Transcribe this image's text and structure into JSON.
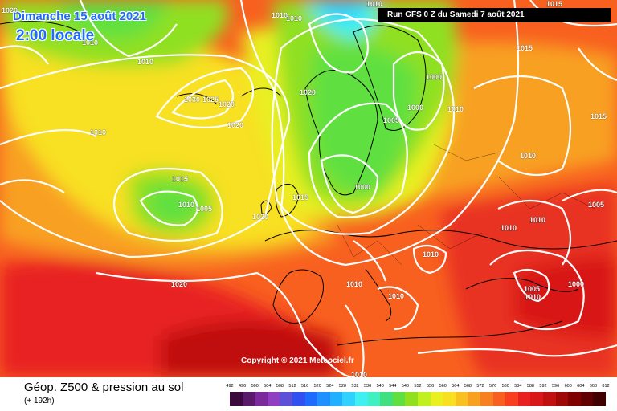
{
  "title": {
    "date": "Dimanche 15 août 2021",
    "time": "2:00 locale"
  },
  "run_info": "Run GFS 0 Z du Samedi 7 août 2021",
  "copyright": "Copyright © 2021 Meteociel.fr",
  "legend": {
    "title": "Géop. Z500 & pression au sol",
    "subtitle": "(+ 192h)",
    "ticks": [
      "492",
      "496",
      "500",
      "504",
      "508",
      "512",
      "516",
      "520",
      "524",
      "528",
      "532",
      "536",
      "540",
      "544",
      "548",
      "552",
      "556",
      "560",
      "564",
      "568",
      "572",
      "576",
      "580",
      "584",
      "588",
      "592",
      "596",
      "600",
      "604",
      "608",
      "612"
    ],
    "colors": [
      "#3a0a3a",
      "#5a1a6a",
      "#7a2a9a",
      "#8f3fc0",
      "#5e4fd8",
      "#3050f0",
      "#1e6bff",
      "#1e90ff",
      "#20b0ff",
      "#30d0ff",
      "#40f0f0",
      "#40f0c0",
      "#40e080",
      "#60e040",
      "#90e020",
      "#c0f020",
      "#e8f020",
      "#f8e020",
      "#f8c020",
      "#f8a020",
      "#f88020",
      "#f86020",
      "#f84020",
      "#e82020",
      "#d81818",
      "#c01010",
      "#a00808",
      "#800000",
      "#600000",
      "#400000"
    ]
  },
  "isobars": [
    {
      "label": "1020",
      "key": "i1"
    },
    {
      "label": "1010",
      "key": "i2"
    },
    {
      "label": "1010",
      "key": "i3"
    },
    {
      "label": "1010",
      "key": "i4"
    },
    {
      "label": "1015",
      "key": "i5"
    },
    {
      "label": "1010",
      "key": "i6"
    },
    {
      "label": "1030",
      "key": "i7"
    },
    {
      "label": "1025",
      "key": "i8"
    },
    {
      "label": "1020",
      "key": "i9"
    },
    {
      "label": "1020",
      "key": "i10"
    },
    {
      "label": "1020",
      "key": "i11"
    },
    {
      "label": "1000",
      "key": "i12"
    },
    {
      "label": "1000",
      "key": "i13"
    },
    {
      "label": "1005",
      "key": "i14"
    },
    {
      "label": "1010",
      "key": "i15"
    },
    {
      "label": "1015",
      "key": "i16"
    },
    {
      "label": "1010",
      "key": "i17"
    },
    {
      "label": "1015",
      "key": "i18"
    },
    {
      "label": "1010",
      "key": "i19"
    },
    {
      "label": "1005",
      "key": "i20"
    },
    {
      "label": "1000",
      "key": "i21"
    },
    {
      "label": "1015",
      "key": "i22"
    },
    {
      "label": "1020",
      "key": "i23"
    },
    {
      "label": "1010",
      "key": "i24"
    },
    {
      "label": "1010",
      "key": "i25"
    },
    {
      "label": "1010",
      "key": "i26"
    },
    {
      "label": "1010",
      "key": "i27"
    },
    {
      "label": "1005",
      "key": "i28"
    },
    {
      "label": "1020",
      "key": "i29"
    },
    {
      "label": "1010",
      "key": "i30"
    },
    {
      "label": "1010",
      "key": "i31"
    },
    {
      "label": "1005",
      "key": "i32"
    },
    {
      "label": "1000",
      "key": "i33"
    },
    {
      "label": "1010",
      "key": "i34"
    },
    {
      "label": "1015",
      "key": "i35"
    },
    {
      "label": "1010",
      "key": "i36"
    },
    {
      "label": "1010",
      "key": "i37"
    }
  ]
}
